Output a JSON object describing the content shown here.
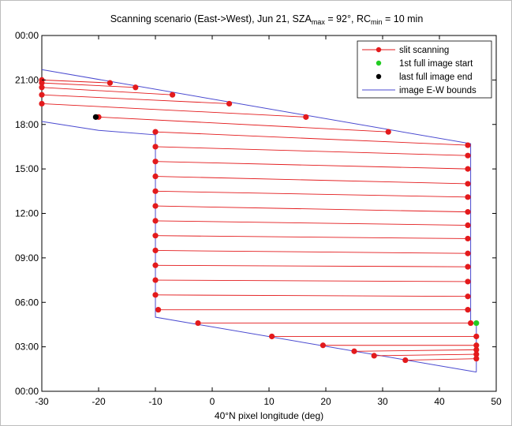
{
  "chart_data": {
    "type": "line",
    "title": {
      "prefix": "Scanning scenario (East->West), Jun 21, SZA",
      "sza_sub": "max",
      "sza_value": " = 92°, RC",
      "rc_sub": "min",
      "rc_value": " = 10 min"
    },
    "xlabel": "40°N pixel longitude (deg)",
    "ylabel": "",
    "xlim": [
      -30,
      50
    ],
    "ylim": [
      0,
      24
    ],
    "x_ticks": [
      "-30",
      "-20",
      "-10",
      "0",
      "10",
      "20",
      "30",
      "40",
      "50"
    ],
    "y_ticks": [
      "00:00",
      "03:00",
      "06:00",
      "09:00",
      "12:00",
      "15:00",
      "18:00",
      "21:00",
      "00:00"
    ],
    "legend_position": "top-right",
    "legend": [
      {
        "label": "slit scanning",
        "color": "#e31a1c",
        "style": "line-dot"
      },
      {
        "label": "1st full image start",
        "color": "#22cc22",
        "style": "dot"
      },
      {
        "label": "last full image end",
        "color": "#000000",
        "style": "dot"
      },
      {
        "label": "image E-W bounds",
        "color": "#4a4ad0",
        "style": "line"
      }
    ],
    "series": [
      {
        "name": "slit scanning",
        "color": "#e31a1c",
        "segments": [
          [
            [
              46.5,
              2.2
            ],
            [
              34.0,
              2.1
            ]
          ],
          [
            [
              46.5,
              2.5
            ],
            [
              28.5,
              2.4
            ]
          ],
          [
            [
              46.5,
              2.8
            ],
            [
              25.0,
              2.7
            ]
          ],
          [
            [
              46.5,
              3.1
            ],
            [
              19.5,
              3.1
            ]
          ],
          [
            [
              46.5,
              3.7
            ],
            [
              10.5,
              3.7
            ]
          ],
          [
            [
              45.5,
              4.6
            ],
            [
              -2.5,
              4.6
            ]
          ],
          [
            [
              45.0,
              5.5
            ],
            [
              -9.5,
              5.5
            ]
          ],
          [
            [
              45.0,
              6.4
            ],
            [
              -10.0,
              6.5
            ]
          ],
          [
            [
              45.0,
              7.4
            ],
            [
              -10.0,
              7.5
            ]
          ],
          [
            [
              45.0,
              8.4
            ],
            [
              -10.0,
              8.5
            ]
          ],
          [
            [
              45.0,
              9.3
            ],
            [
              -10.0,
              9.5
            ]
          ],
          [
            [
              45.0,
              10.3
            ],
            [
              -10.0,
              10.5
            ]
          ],
          [
            [
              45.0,
              11.2
            ],
            [
              -10.0,
              11.5
            ]
          ],
          [
            [
              45.0,
              12.1
            ],
            [
              -10.0,
              12.5
            ]
          ],
          [
            [
              45.0,
              13.1
            ],
            [
              -10.0,
              13.5
            ]
          ],
          [
            [
              45.0,
              14.0
            ],
            [
              -10.0,
              14.5
            ]
          ],
          [
            [
              45.0,
              15.0
            ],
            [
              -10.0,
              15.5
            ]
          ],
          [
            [
              45.0,
              15.9
            ],
            [
              -10.0,
              16.5
            ]
          ],
          [
            [
              45.0,
              16.6
            ],
            [
              -10.0,
              17.5
            ]
          ],
          [
            [
              31.0,
              17.5
            ],
            [
              -20.0,
              18.5
            ]
          ],
          [
            [
              16.5,
              18.5
            ],
            [
              -30.0,
              19.4
            ]
          ],
          [
            [
              3.0,
              19.4
            ],
            [
              -30.0,
              20.0
            ]
          ],
          [
            [
              -7.0,
              20.0
            ],
            [
              -30.0,
              20.5
            ]
          ],
          [
            [
              -13.5,
              20.5
            ],
            [
              -30.0,
              20.8
            ]
          ],
          [
            [
              -18.0,
              20.8
            ],
            [
              -30.0,
              21.0
            ]
          ]
        ]
      }
    ],
    "first_full_image_start": [
      46.5,
      4.6
    ],
    "last_full_image_end": [
      -20.5,
      18.5
    ],
    "bounds": {
      "left": [
        [
          -30,
          18.2
        ],
        [
          -20,
          17.6
        ],
        [
          -10,
          17.3
        ],
        [
          -10,
          5.0
        ],
        [
          46.5,
          1.3
        ]
      ],
      "right": [
        [
          -30,
          21.7
        ],
        [
          45.5,
          16.7
        ],
        [
          45.5,
          4.6
        ],
        [
          46.5,
          4.6
        ],
        [
          46.5,
          1.3
        ]
      ]
    }
  }
}
